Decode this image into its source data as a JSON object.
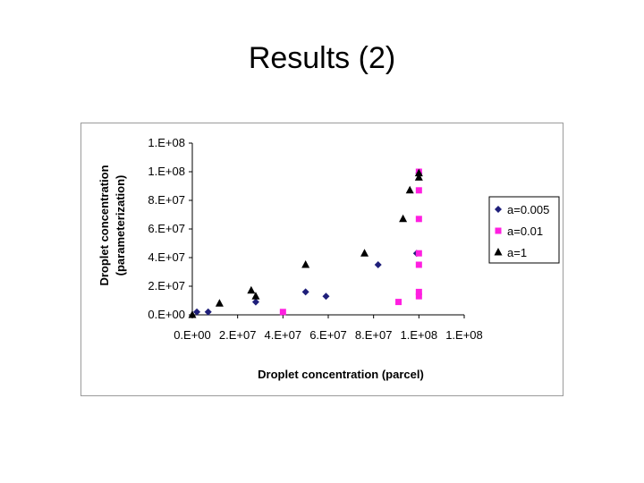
{
  "slide": {
    "title": "Results (2)"
  },
  "chart_data": {
    "type": "scatter",
    "title": "",
    "xlabel": "Droplet concentration (parcel)",
    "ylabel_lines": [
      "Droplet concentration",
      "(parameterization)"
    ],
    "xlim": [
      0,
      120000000
    ],
    "ylim": [
      0,
      120000000
    ],
    "x_tick_labels": [
      "0.E+00",
      "2.E+07",
      "4.E+07",
      "6.E+07",
      "8.E+07",
      "1.E+08",
      "1.E+08"
    ],
    "y_tick_labels": [
      "0.E+00",
      "2.E+07",
      "4.E+07",
      "6.E+07",
      "8.E+07",
      "1.E+08",
      "1.E+08"
    ],
    "grid": false,
    "legend_position": "right",
    "series": [
      {
        "name": "a=0.005",
        "marker": "diamond",
        "color": "#1f1f7a",
        "x": [
          2000000,
          7000000,
          28000000,
          50000000,
          59000000,
          82000000,
          99000000,
          100000000
        ],
        "y": [
          2000000,
          2000000,
          9000000,
          16000000,
          13000000,
          35000000,
          43000000,
          99000000
        ]
      },
      {
        "name": "a=0.01",
        "marker": "square",
        "color": "#ff1fe0",
        "x": [
          40000000,
          91000000,
          100000000,
          100000000,
          100000000,
          100000000,
          100000000,
          100000000,
          100000000
        ],
        "y": [
          2000000,
          9000000,
          13000000,
          16000000,
          35000000,
          43000000,
          67000000,
          87000000,
          100000000
        ]
      },
      {
        "name": "a=1",
        "marker": "triangle",
        "color": "#000000",
        "x": [
          0,
          12000000,
          26000000,
          28000000,
          50000000,
          76000000,
          93000000,
          96000000,
          100000000,
          100000000
        ],
        "y": [
          0,
          8000000,
          17000000,
          13000000,
          35000000,
          43000000,
          67000000,
          87000000,
          96000000,
          99000000
        ]
      }
    ]
  }
}
